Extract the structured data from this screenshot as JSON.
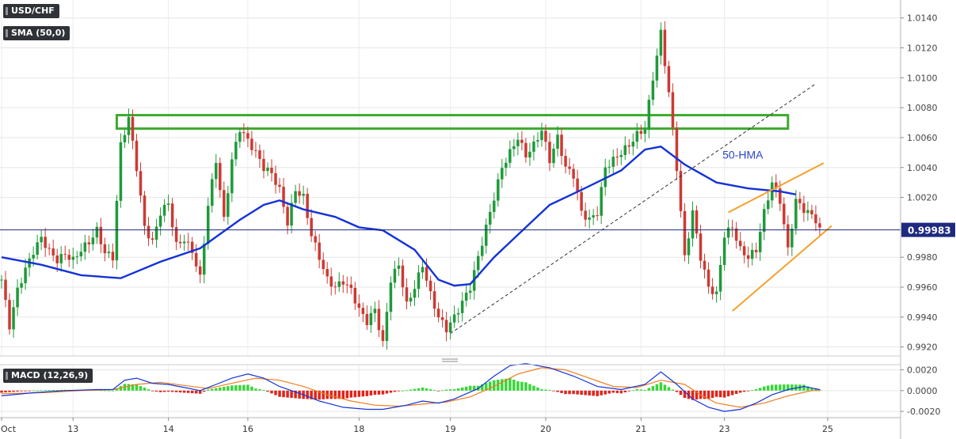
{
  "header": {
    "symbol": "USD/CHF",
    "indicator": "SMA (50,0)",
    "macd_label": "MACD (12,26,9)"
  },
  "annotations": {
    "hma_label": "50-HMA"
  },
  "colors": {
    "up": "#1f9a3a",
    "down": "#cc3a33",
    "hma": "#1432d8",
    "resistance_box": "#3caa2d",
    "channel": "#f4a12c",
    "trend_dashed": "#333333",
    "price_line": "#1e2a80",
    "macd_line": "#1432d8",
    "signal_line": "#f07c1e",
    "hist_pos": "#38d638",
    "hist_neg": "#e0241b"
  },
  "chart_data": [
    {
      "type": "candlestick",
      "title": "USD/CHF",
      "ylim": [
        0.9914,
        1.0152
      ],
      "y_ticks": [
        "1.0140",
        "1.0120",
        "1.0100",
        "1.0080",
        "1.0060",
        "1.0040",
        "1.0020",
        "0.9980",
        "0.9960",
        "0.9940",
        "0.9920"
      ],
      "current_price": "0.99983",
      "x_ticks": [
        "Oct",
        "13",
        "14",
        "16",
        "18",
        "19",
        "20",
        "21",
        "23",
        "25"
      ],
      "session_anchors": [
        {
          "label": "Oct",
          "pos": 0
        },
        {
          "label": "13",
          "pos": 18
        },
        {
          "label": "14",
          "pos": 42
        },
        {
          "label": "16",
          "pos": 62
        },
        {
          "label": "18",
          "pos": 90
        },
        {
          "label": "19",
          "pos": 113
        },
        {
          "label": "20",
          "pos": 137
        },
        {
          "label": "21",
          "pos": 161
        },
        {
          "label": "23",
          "pos": 182
        },
        {
          "label": "25",
          "pos": 208
        }
      ],
      "close_path": [
        [
          0,
          0.9965
        ],
        [
          2,
          0.9934
        ],
        [
          4,
          0.9958
        ],
        [
          6,
          0.9972
        ],
        [
          8,
          0.9984
        ],
        [
          10,
          0.9993
        ],
        [
          12,
          0.9984
        ],
        [
          14,
          0.9978
        ],
        [
          16,
          0.9982
        ],
        [
          18,
          0.9978
        ],
        [
          20,
          0.9985
        ],
        [
          22,
          0.999
        ],
        [
          24,
          0.9998
        ],
        [
          26,
          0.9983
        ],
        [
          28,
          0.998
        ],
        [
          30,
          1.0055
        ],
        [
          32,
          1.0073
        ],
        [
          34,
          1.004
        ],
        [
          36,
          1.0
        ],
        [
          38,
          0.999
        ],
        [
          40,
          1.001
        ],
        [
          42,
          1.0016
        ],
        [
          44,
          0.9988
        ],
        [
          46,
          0.9992
        ],
        [
          48,
          0.9984
        ],
        [
          50,
          0.9966
        ],
        [
          52,
          1.0015
        ],
        [
          54,
          1.0045
        ],
        [
          56,
          1.0005
        ],
        [
          58,
          1.0045
        ],
        [
          60,
          1.0066
        ],
        [
          62,
          1.0058
        ],
        [
          64,
          1.005
        ],
        [
          66,
          1.004
        ],
        [
          68,
          1.0036
        ],
        [
          70,
          1.0025
        ],
        [
          72,
          1.0003
        ],
        [
          74,
          1.0025
        ],
        [
          76,
          1.002
        ],
        [
          78,
          0.9995
        ],
        [
          80,
          0.998
        ],
        [
          82,
          0.9965
        ],
        [
          84,
          0.996
        ],
        [
          86,
          0.9964
        ],
        [
          88,
          0.9958
        ],
        [
          90,
          0.9945
        ],
        [
          92,
          0.9937
        ],
        [
          94,
          0.9945
        ],
        [
          96,
          0.9922
        ],
        [
          98,
          0.9965
        ],
        [
          100,
          0.9975
        ],
        [
          102,
          0.9948
        ],
        [
          104,
          0.996
        ],
        [
          106,
          0.9975
        ],
        [
          108,
          0.9955
        ],
        [
          110,
          0.994
        ],
        [
          112,
          0.9932
        ],
        [
          114,
          0.994
        ],
        [
          116,
          0.995
        ],
        [
          118,
          0.996
        ],
        [
          120,
          0.998
        ],
        [
          122,
          1.0
        ],
        [
          124,
          1.002
        ],
        [
          126,
          1.004
        ],
        [
          128,
          1.005
        ],
        [
          130,
          1.006
        ],
        [
          132,
          1.0048
        ],
        [
          134,
          1.0055
        ],
        [
          136,
          1.0065
        ],
        [
          138,
          1.0045
        ],
        [
          140,
          1.006
        ],
        [
          142,
          1.004
        ],
        [
          144,
          1.0035
        ],
        [
          146,
          1.001
        ],
        [
          148,
          1.0005
        ],
        [
          150,
          1.001
        ],
        [
          152,
          1.004
        ],
        [
          154,
          1.0045
        ],
        [
          156,
          1.005
        ],
        [
          158,
          1.0055
        ],
        [
          160,
          1.0062
        ],
        [
          162,
          1.0066
        ],
        [
          164,
          1.01
        ],
        [
          166,
          1.013
        ],
        [
          168,
          1.009
        ],
        [
          170,
          1.004
        ],
        [
          172,
          0.998
        ],
        [
          174,
          1.001
        ],
        [
          176,
          0.998
        ],
        [
          178,
          0.996
        ],
        [
          180,
          0.9955
        ],
        [
          182,
          0.9995
        ],
        [
          184,
          1.0
        ],
        [
          186,
          0.9985
        ],
        [
          188,
          0.998
        ],
        [
          190,
          0.9985
        ],
        [
          192,
          1.001
        ],
        [
          194,
          1.003
        ],
        [
          196,
          1.0018
        ],
        [
          198,
          0.9985
        ],
        [
          200,
          1.0018
        ],
        [
          202,
          1.0012
        ],
        [
          204,
          1.0008
        ],
        [
          205,
          1.0005
        ],
        [
          206,
          0.9998
        ]
      ],
      "hma_50": [
        [
          0,
          0.998
        ],
        [
          10,
          0.9975
        ],
        [
          20,
          0.9968
        ],
        [
          30,
          0.9966
        ],
        [
          40,
          0.9977
        ],
        [
          50,
          0.9986
        ],
        [
          60,
          1.0005
        ],
        [
          66,
          1.0015
        ],
        [
          70,
          1.0018
        ],
        [
          76,
          1.0012
        ],
        [
          84,
          1.0007
        ],
        [
          90,
          1.0
        ],
        [
          96,
          0.9998
        ],
        [
          104,
          0.9985
        ],
        [
          110,
          0.9965
        ],
        [
          114,
          0.9961
        ],
        [
          118,
          0.9962
        ],
        [
          124,
          0.998
        ],
        [
          130,
          0.9995
        ],
        [
          138,
          1.0015
        ],
        [
          146,
          1.0025
        ],
        [
          156,
          1.0038
        ],
        [
          162,
          1.0052
        ],
        [
          166,
          1.0054
        ],
        [
          172,
          1.0042
        ],
        [
          180,
          1.003
        ],
        [
          188,
          1.0026
        ],
        [
          196,
          1.0024
        ],
        [
          200,
          1.0022
        ]
      ],
      "resistance_zone": {
        "from_pos": 29,
        "to_pos": 198,
        "low": 1.0066,
        "high": 1.0075
      },
      "trend_line": {
        "from": [
          113,
          0.9929
        ],
        "to": [
          205,
          1.0096
        ]
      },
      "channel_upper": {
        "from": [
          183,
          1.001
        ],
        "to": [
          207,
          1.0043
        ]
      },
      "channel_lower": {
        "from": [
          184,
          0.9944
        ],
        "to": [
          209,
          1.0001
        ]
      }
    },
    {
      "type": "macd",
      "title": "MACD (12,26,9)",
      "ylim": [
        -0.0026,
        0.0025
      ],
      "y_ticks": [
        "0.0020",
        "0.0000",
        "-0.0020"
      ],
      "macd": [
        [
          0,
          -0.0005
        ],
        [
          8,
          -0.0002
        ],
        [
          16,
          0.0
        ],
        [
          24,
          0.0001
        ],
        [
          28,
          0.0001
        ],
        [
          31,
          0.001
        ],
        [
          34,
          0.0012
        ],
        [
          38,
          0.0007
        ],
        [
          42,
          0.0006
        ],
        [
          46,
          0.0003
        ],
        [
          50,
          0.0
        ],
        [
          54,
          0.0006
        ],
        [
          58,
          0.0012
        ],
        [
          62,
          0.0016
        ],
        [
          66,
          0.0012
        ],
        [
          70,
          0.0004
        ],
        [
          76,
          -0.0004
        ],
        [
          80,
          -0.001
        ],
        [
          86,
          -0.0016
        ],
        [
          92,
          -0.0018
        ],
        [
          96,
          -0.0018
        ],
        [
          102,
          -0.0014
        ],
        [
          106,
          -0.001
        ],
        [
          110,
          -0.0012
        ],
        [
          114,
          -0.0008
        ],
        [
          120,
          0.0002
        ],
        [
          124,
          0.0014
        ],
        [
          128,
          0.0024
        ],
        [
          132,
          0.0026
        ],
        [
          138,
          0.0022
        ],
        [
          144,
          0.0014
        ],
        [
          150,
          0.0004
        ],
        [
          156,
          0.0001
        ],
        [
          162,
          0.0006
        ],
        [
          166,
          0.0018
        ],
        [
          170,
          0.0006
        ],
        [
          174,
          -0.0008
        ],
        [
          178,
          -0.0016
        ],
        [
          182,
          -0.002
        ],
        [
          186,
          -0.0018
        ],
        [
          190,
          -0.0012
        ],
        [
          194,
          -0.0004
        ],
        [
          198,
          0.0001
        ],
        [
          202,
          0.0004
        ],
        [
          206,
          0.0001
        ]
      ],
      "signal": [
        [
          0,
          -0.0003
        ],
        [
          10,
          -0.0002
        ],
        [
          20,
          0.0
        ],
        [
          28,
          0.0001
        ],
        [
          34,
          0.0006
        ],
        [
          40,
          0.0008
        ],
        [
          46,
          0.0005
        ],
        [
          52,
          0.0002
        ],
        [
          58,
          0.0007
        ],
        [
          64,
          0.0012
        ],
        [
          70,
          0.001
        ],
        [
          76,
          0.0004
        ],
        [
          82,
          -0.0004
        ],
        [
          88,
          -0.001
        ],
        [
          94,
          -0.0014
        ],
        [
          100,
          -0.0015
        ],
        [
          106,
          -0.0013
        ],
        [
          112,
          -0.0011
        ],
        [
          118,
          -0.0006
        ],
        [
          124,
          0.0004
        ],
        [
          130,
          0.0016
        ],
        [
          136,
          0.0022
        ],
        [
          142,
          0.002
        ],
        [
          148,
          0.0012
        ],
        [
          154,
          0.0004
        ],
        [
          160,
          0.0003
        ],
        [
          166,
          0.001
        ],
        [
          172,
          0.0006
        ],
        [
          176,
          -0.0004
        ],
        [
          180,
          -0.0012
        ],
        [
          186,
          -0.0016
        ],
        [
          192,
          -0.0012
        ],
        [
          198,
          -0.0005
        ],
        [
          204,
          0.0
        ],
        [
          206,
          0.0
        ]
      ]
    }
  ]
}
